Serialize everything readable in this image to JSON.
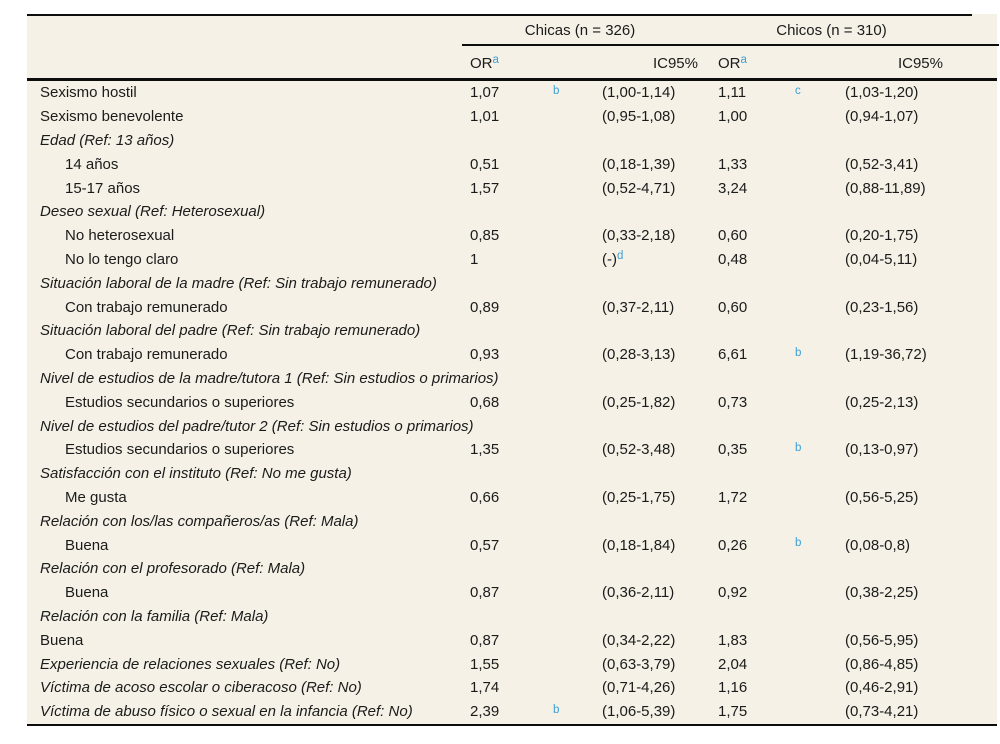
{
  "figure": {
    "type": "regression-table",
    "colors": {
      "background": "#f5f1e6",
      "rule": "#0d0d0d",
      "text": "#1b1b1b",
      "superscript_blue": "#3da0d8"
    },
    "header": {
      "groups": [
        {
          "label": "Chicas (n = 326)"
        },
        {
          "label": "Chicos (n = 310)"
        }
      ],
      "columns": {
        "or_label": "OR",
        "or_superscript": "a",
        "ic_label": "IC95%"
      }
    },
    "rows": [
      {
        "label": "Sexismo hostil",
        "italic": false,
        "indent": false,
        "or1": "1,07",
        "sup1": "b",
        "ic1": "(1,00-1,14)",
        "or2": "1,11",
        "sup2": "c",
        "ic2": "(1,03-1,20)"
      },
      {
        "label": "Sexismo benevolente",
        "italic": false,
        "indent": false,
        "or1": "1,01",
        "ic1": "(0,95-1,08)",
        "or2": "1,00",
        "ic2": "(0,94-1,07)"
      },
      {
        "label": "Edad (Ref: 13 años)",
        "italic": true,
        "indent": false
      },
      {
        "label": "14 años",
        "italic": false,
        "indent": true,
        "or1": "0,51",
        "ic1": "(0,18-1,39)",
        "or2": "1,33",
        "ic2": "(0,52-3,41)"
      },
      {
        "label": "15-17 años",
        "italic": false,
        "indent": true,
        "or1": "1,57",
        "ic1": "(0,52-4,71)",
        "or2": "3,24",
        "ic2": "(0,88-11,89)"
      },
      {
        "label": "Deseo sexual (Ref: Heterosexual)",
        "italic": true,
        "indent": false
      },
      {
        "label": "No heterosexual",
        "italic": false,
        "indent": true,
        "or1": "0,85",
        "ic1": "(0,33-2,18)",
        "or2": "0,60",
        "ic2": "(0,20-1,75)"
      },
      {
        "label": "No lo tengo claro",
        "italic": false,
        "indent": true,
        "or1": "1",
        "ic1": "(-)",
        "ic1_sup": "d",
        "or2": "0,48",
        "ic2": "(0,04-5,11)"
      },
      {
        "label": "Situación laboral de la madre (Ref: Sin trabajo remunerado)",
        "italic": true,
        "indent": false
      },
      {
        "label": "Con trabajo remunerado",
        "italic": false,
        "indent": true,
        "or1": "0,89",
        "ic1": "(0,37-2,11)",
        "or2": "0,60",
        "ic2": "(0,23-1,56)"
      },
      {
        "label": "Situación laboral del padre (Ref: Sin trabajo remunerado)",
        "italic": true,
        "indent": false
      },
      {
        "label": "Con trabajo remunerado",
        "italic": false,
        "indent": true,
        "or1": "0,93",
        "ic1": "(0,28-3,13)",
        "or2": "6,61",
        "sup2": "b",
        "ic2": "(1,19-36,72)"
      },
      {
        "label": "Nivel de estudios de la madre/tutora 1 (Ref: Sin estudios o primarios)",
        "italic": true,
        "indent": false
      },
      {
        "label": "Estudios secundarios o superiores",
        "italic": false,
        "indent": true,
        "or1": "0,68",
        "ic1": "(0,25-1,82)",
        "or2": "0,73",
        "ic2": "(0,25-2,13)"
      },
      {
        "label": "Nivel de estudios del padre/tutor 2 (Ref: Sin estudios o primarios)",
        "italic": true,
        "indent": false
      },
      {
        "label": "Estudios secundarios o superiores",
        "italic": false,
        "indent": true,
        "or1": "1,35",
        "ic1": "(0,52-3,48)",
        "or2": "0,35",
        "sup2": "b",
        "ic2": "(0,13-0,97)"
      },
      {
        "label": "Satisfacción con el instituto (Ref: No me gusta)",
        "italic": true,
        "indent": false
      },
      {
        "label": "Me gusta",
        "italic": false,
        "indent": true,
        "or1": "0,66",
        "ic1": "(0,25-1,75)",
        "or2": "1,72",
        "ic2": "(0,56-5,25)"
      },
      {
        "label": "Relación con los/las compañeros/as (Ref: Mala)",
        "italic": true,
        "indent": false
      },
      {
        "label": "Buena",
        "italic": false,
        "indent": true,
        "or1": "0,57",
        "ic1": "(0,18-1,84)",
        "or2": "0,26",
        "sup2": "b",
        "ic2": "(0,08-0,8)"
      },
      {
        "label": "Relación con el profesorado (Ref: Mala)",
        "italic": true,
        "indent": false
      },
      {
        "label": "Buena",
        "italic": false,
        "indent": true,
        "or1": "0,87",
        "ic1": "(0,36-2,11)",
        "or2": "0,92",
        "ic2": "(0,38-2,25)"
      },
      {
        "label": "Relación con la familia (Ref: Mala)",
        "italic": true,
        "indent": false
      },
      {
        "label": "Buena",
        "italic": false,
        "indent": false,
        "or1": "0,87",
        "ic1": "(0,34-2,22)",
        "or2": "1,83",
        "ic2": "(0,56-5,95)"
      },
      {
        "label": "Experiencia de relaciones sexuales (Ref: No)",
        "italic": true,
        "indent": false,
        "or1": "1,55",
        "ic1": "(0,63-3,79)",
        "or2": "2,04",
        "ic2": "(0,86-4,85)"
      },
      {
        "label": "Víctima de acoso escolar o ciberacoso (Ref: No)",
        "italic": true,
        "indent": false,
        "or1": "1,74",
        "ic1": "(0,71-4,26)",
        "or2": "1,16",
        "ic2": "(0,46-2,91)"
      },
      {
        "label": "Víctima de abuso físico o sexual en la infancia (Ref: No)",
        "italic": true,
        "indent": false,
        "or1": "2,39",
        "sup1": "b",
        "ic1": "(1,06-5,39)",
        "or2": "1,75",
        "ic2": "(0,73-4,21)"
      }
    ]
  }
}
